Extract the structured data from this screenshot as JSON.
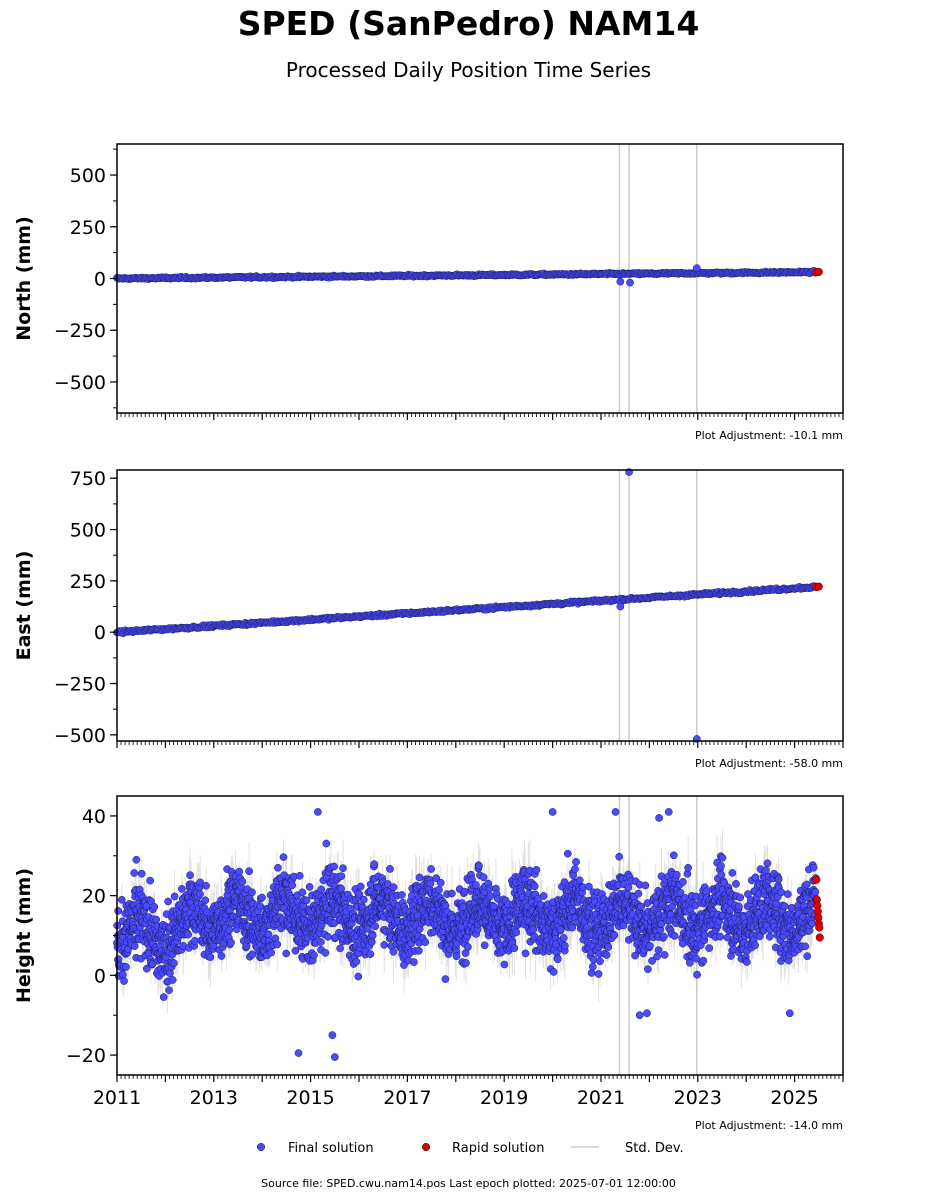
{
  "header": {
    "title": "SPED (SanPedro) NAM14",
    "subtitle": "Processed Daily Position Time Series"
  },
  "footer": {
    "source": "Source file: SPED.cwu.nam14.pos  Last epoch plotted: 2025-07-01 12:00:00"
  },
  "legend": {
    "placement": "bottom-center",
    "items": [
      {
        "label": "Final solution",
        "color": "#4a4aff",
        "marker": "dot"
      },
      {
        "label": "Rapid solution",
        "color": "#dd0000",
        "marker": "dot"
      },
      {
        "label": "Std. Dev.",
        "color": "#cccccc",
        "marker": "line"
      }
    ]
  },
  "colors": {
    "final": "#4a4aff",
    "rapid": "#dd0000",
    "stddev": "#bbbbbb",
    "equipment_line": "#cccccc"
  },
  "chart_data": [
    {
      "type": "scatter",
      "ylabel": "North (mm)",
      "xlim": [
        2011.0,
        2026.0
      ],
      "ylim": [
        -650,
        650
      ],
      "yticks": [
        -500,
        -250,
        0,
        250,
        500
      ],
      "ytick_labels": [
        "−500",
        "−250",
        "0",
        "250",
        "500"
      ],
      "adjustment": "Plot Adjustment: -10.1 mm",
      "vertical_lines_x": [
        2021.38,
        2021.58,
        2022.98
      ],
      "final_trend": {
        "x": [
          2011.0,
          2025.45
        ],
        "y": [
          0,
          31
        ]
      },
      "noise_mm": 3,
      "outliers": [
        {
          "x": 2021.4,
          "y": -15
        },
        {
          "x": 2021.6,
          "y": -20
        },
        {
          "x": 2022.98,
          "y": 50
        }
      ],
      "rapid": {
        "x": [
          2025.45,
          2025.5
        ],
        "y": [
          31,
          32
        ]
      }
    },
    {
      "type": "scatter",
      "ylabel": "East (mm)",
      "xlim": [
        2011.0,
        2026.0
      ],
      "ylim": [
        -530,
        790
      ],
      "yticks": [
        -500,
        -250,
        0,
        250,
        500,
        750
      ],
      "ytick_labels": [
        "−500",
        "−250",
        "0",
        "250",
        "500",
        "750"
      ],
      "adjustment": "Plot Adjustment: -58.0 mm",
      "vertical_lines_x": [
        2021.38,
        2021.58,
        2022.98
      ],
      "final_trend": {
        "x": [
          2011.0,
          2025.45
        ],
        "y": [
          0,
          221
        ]
      },
      "noise_mm": 4,
      "outliers": [
        {
          "x": 2021.4,
          "y": 125
        },
        {
          "x": 2021.58,
          "y": 780
        },
        {
          "x": 2022.98,
          "y": -520
        }
      ],
      "rapid": {
        "x": [
          2025.45,
          2025.5
        ],
        "y": [
          220,
          222
        ]
      }
    },
    {
      "type": "scatter",
      "ylabel": "Height (mm)",
      "xlim": [
        2011.0,
        2026.0
      ],
      "ylim": [
        -25,
        45
      ],
      "yticks": [
        -20,
        0,
        20,
        40
      ],
      "ytick_labels": [
        "−20",
        "0",
        "20",
        "40"
      ],
      "xticks": [
        2011,
        2013,
        2015,
        2017,
        2019,
        2021,
        2023,
        2025
      ],
      "xtick_labels": [
        "2011",
        "2013",
        "2015",
        "2017",
        "2019",
        "2021",
        "2023",
        "2025"
      ],
      "adjustment": "Plot Adjustment: -14.0 mm",
      "vertical_lines_x": [
        2021.38,
        2021.58,
        2022.98
      ],
      "final_mean_mm": 15,
      "noise_mm": 7,
      "outliers": [
        {
          "x": 2014.75,
          "y": -19.5
        },
        {
          "x": 2015.5,
          "y": -20.5
        },
        {
          "x": 2015.45,
          "y": -15
        },
        {
          "x": 2015.15,
          "y": 41
        },
        {
          "x": 2020.0,
          "y": 41
        },
        {
          "x": 2021.3,
          "y": 41
        },
        {
          "x": 2022.4,
          "y": 41
        },
        {
          "x": 2022.2,
          "y": 39.5
        },
        {
          "x": 2024.9,
          "y": -9.5
        },
        {
          "x": 2021.8,
          "y": -10
        },
        {
          "x": 2021.95,
          "y": -9.5
        },
        {
          "x": 2011.4,
          "y": 29
        }
      ],
      "rapid": {
        "x": [
          2025.45,
          2025.46,
          2025.47,
          2025.48,
          2025.49,
          2025.5,
          2025.51,
          2025.52
        ],
        "y": [
          24,
          19,
          17.5,
          16,
          14.5,
          13,
          12,
          9.5
        ]
      }
    }
  ]
}
